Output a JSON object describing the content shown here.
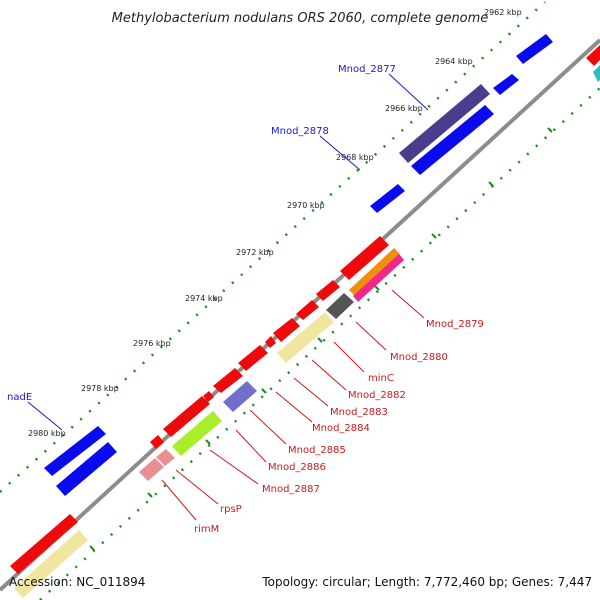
{
  "title": "Methylobacterium nodulans ORS 2060, complete genome",
  "footer": {
    "accession": "Accession: NC_011894",
    "summary": "Topology: circular; Length: 7,772,460 bp; Genes: 7,447"
  },
  "ticks": [
    "2962 kbp",
    "2964 kbp",
    "2966 kbp",
    "2968 kbp",
    "2970 kbp",
    "2972 kbp",
    "2974 kbp",
    "2976 kbp",
    "2978 kbp",
    "2980 kbp"
  ],
  "gene_labels": {
    "nadE": "nadE",
    "Mnod_2877": "Mnod_2877",
    "Mnod_2878": "Mnod_2878",
    "Mnod_2879": "Mnod_2879",
    "Mnod_2880": "Mnod_2880",
    "minC": "minC",
    "Mnod_2882": "Mnod_2882",
    "Mnod_2883": "Mnod_2883",
    "Mnod_2884": "Mnod_2884",
    "Mnod_2885": "Mnod_2885",
    "Mnod_2886": "Mnod_2886",
    "Mnod_2887": "Mnod_2887",
    "rpsP": "rpsP",
    "rimM": "rimM"
  },
  "colors": {
    "backbone": "#8c8c8c",
    "tick_dots": "#1a8c1a",
    "blue_genes": "#0a0aee",
    "red_genes": "#ee0a0a",
    "label_blue": "#1a1acc",
    "label_red": "#cc1a1a"
  }
}
